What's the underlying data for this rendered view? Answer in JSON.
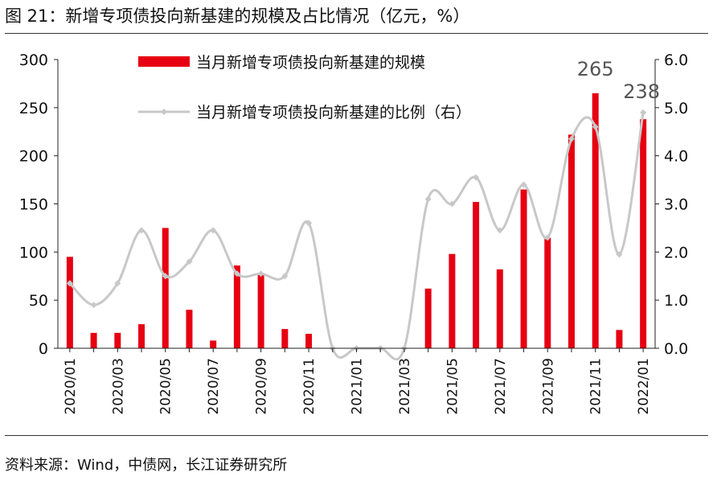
{
  "figure": {
    "title": "图 21：新增专项债投向新基建的规模及占比情况（亿元，%）",
    "source": "资料来源：Wind，中债网，长江证券研究所"
  },
  "colors": {
    "bar": "#e60012",
    "line": "#c8c8c8",
    "axis": "#222222",
    "annotation": "#555555"
  },
  "chart_data": {
    "type": "bar",
    "x": [
      "2020/01",
      "2020/02",
      "2020/03",
      "2020/04",
      "2020/05",
      "2020/06",
      "2020/07",
      "2020/08",
      "2020/09",
      "2020/10",
      "2020/11",
      "2020/12",
      "2021/01",
      "2021/02",
      "2021/03",
      "2021/04",
      "2021/05",
      "2021/06",
      "2021/07",
      "2021/08",
      "2021/09",
      "2021/10",
      "2021/11",
      "2021/12",
      "2022/01"
    ],
    "x_tick_labels": [
      "2020/01",
      "2020/03",
      "2020/05",
      "2020/07",
      "2020/09",
      "2020/11",
      "2021/01",
      "2021/03",
      "2021/05",
      "2021/07",
      "2021/09",
      "2021/11",
      "2022/01"
    ],
    "series": [
      {
        "name": "当月新增专项债投向新基建的规模",
        "type": "bar",
        "axis": "left",
        "values": [
          95,
          16,
          16,
          25,
          125,
          40,
          8,
          86,
          76,
          20,
          15,
          0,
          0,
          0,
          0,
          62,
          98,
          152,
          82,
          165,
          115,
          222,
          265,
          19,
          238
        ]
      },
      {
        "name": "当月新增专项债投向新基建的比例（右）",
        "type": "line",
        "axis": "right",
        "values": [
          1.35,
          0.9,
          1.35,
          2.45,
          1.5,
          1.8,
          2.45,
          1.55,
          1.55,
          1.5,
          2.6,
          0,
          0,
          0,
          0,
          3.1,
          3.0,
          3.55,
          2.45,
          3.4,
          2.3,
          4.35,
          4.6,
          1.95,
          4.9
        ]
      }
    ],
    "annotations": [
      {
        "x": "2021/11",
        "text": "265"
      },
      {
        "x": "2022/01",
        "text": "238"
      }
    ],
    "y_left": {
      "ylim": [
        0,
        300
      ],
      "ticks": [
        "0",
        "50",
        "100",
        "150",
        "200",
        "250",
        "300"
      ]
    },
    "y_right": {
      "ylim": [
        0,
        6
      ],
      "ticks": [
        "0.0",
        "1.0",
        "2.0",
        "3.0",
        "4.0",
        "5.0",
        "6.0"
      ]
    },
    "legend": "top-center",
    "grid": false
  }
}
